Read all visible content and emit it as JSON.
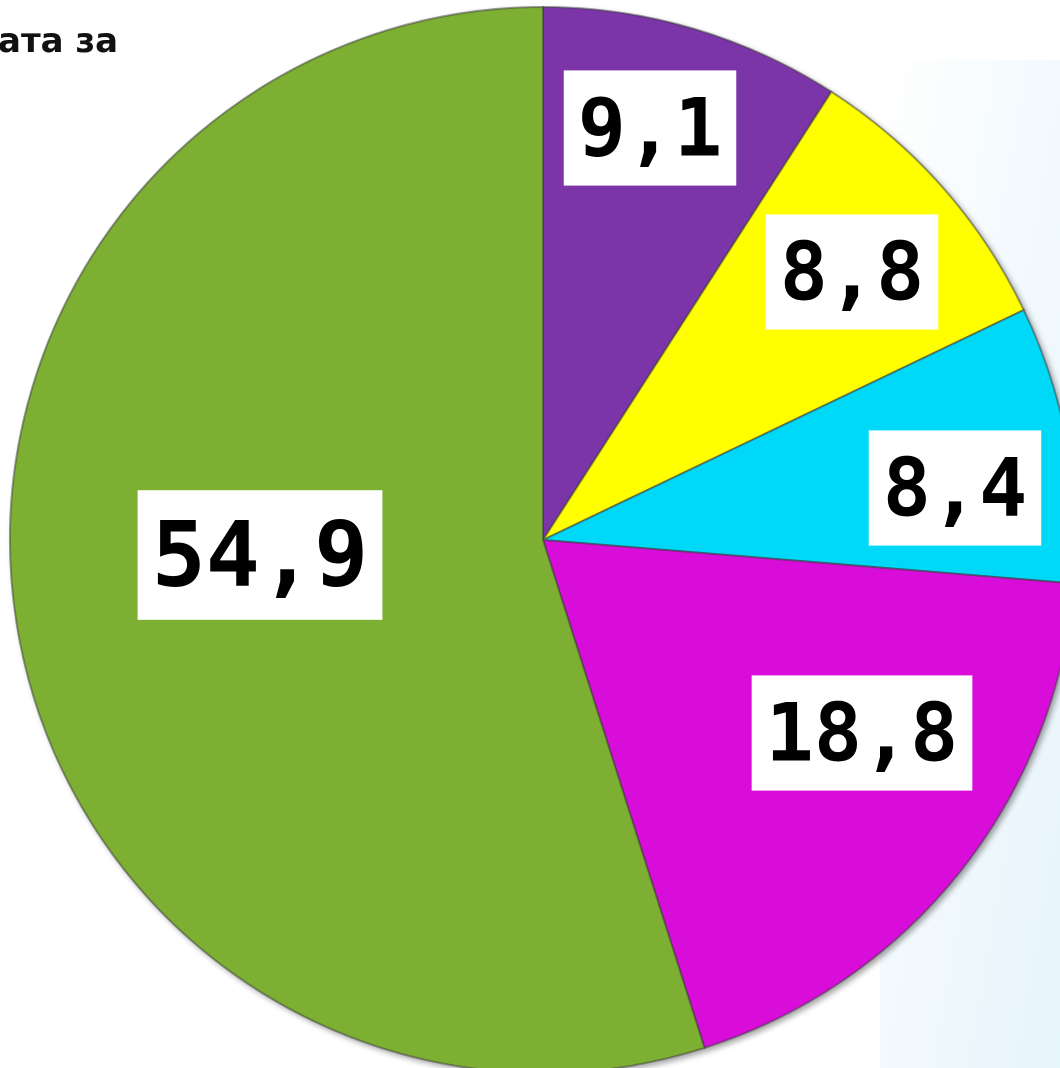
{
  "chart_data": {
    "type": "pie",
    "title": "ата за",
    "values": [
      9.1,
      8.8,
      8.4,
      18.8,
      54.9
    ],
    "value_labels": [
      "9,1",
      "8,8",
      "8,4",
      "18,8",
      "54,9"
    ],
    "colors": [
      "#7b35a8",
      "#ffff00",
      "#00d8f8",
      "#d90ad9",
      "#7db030"
    ]
  }
}
